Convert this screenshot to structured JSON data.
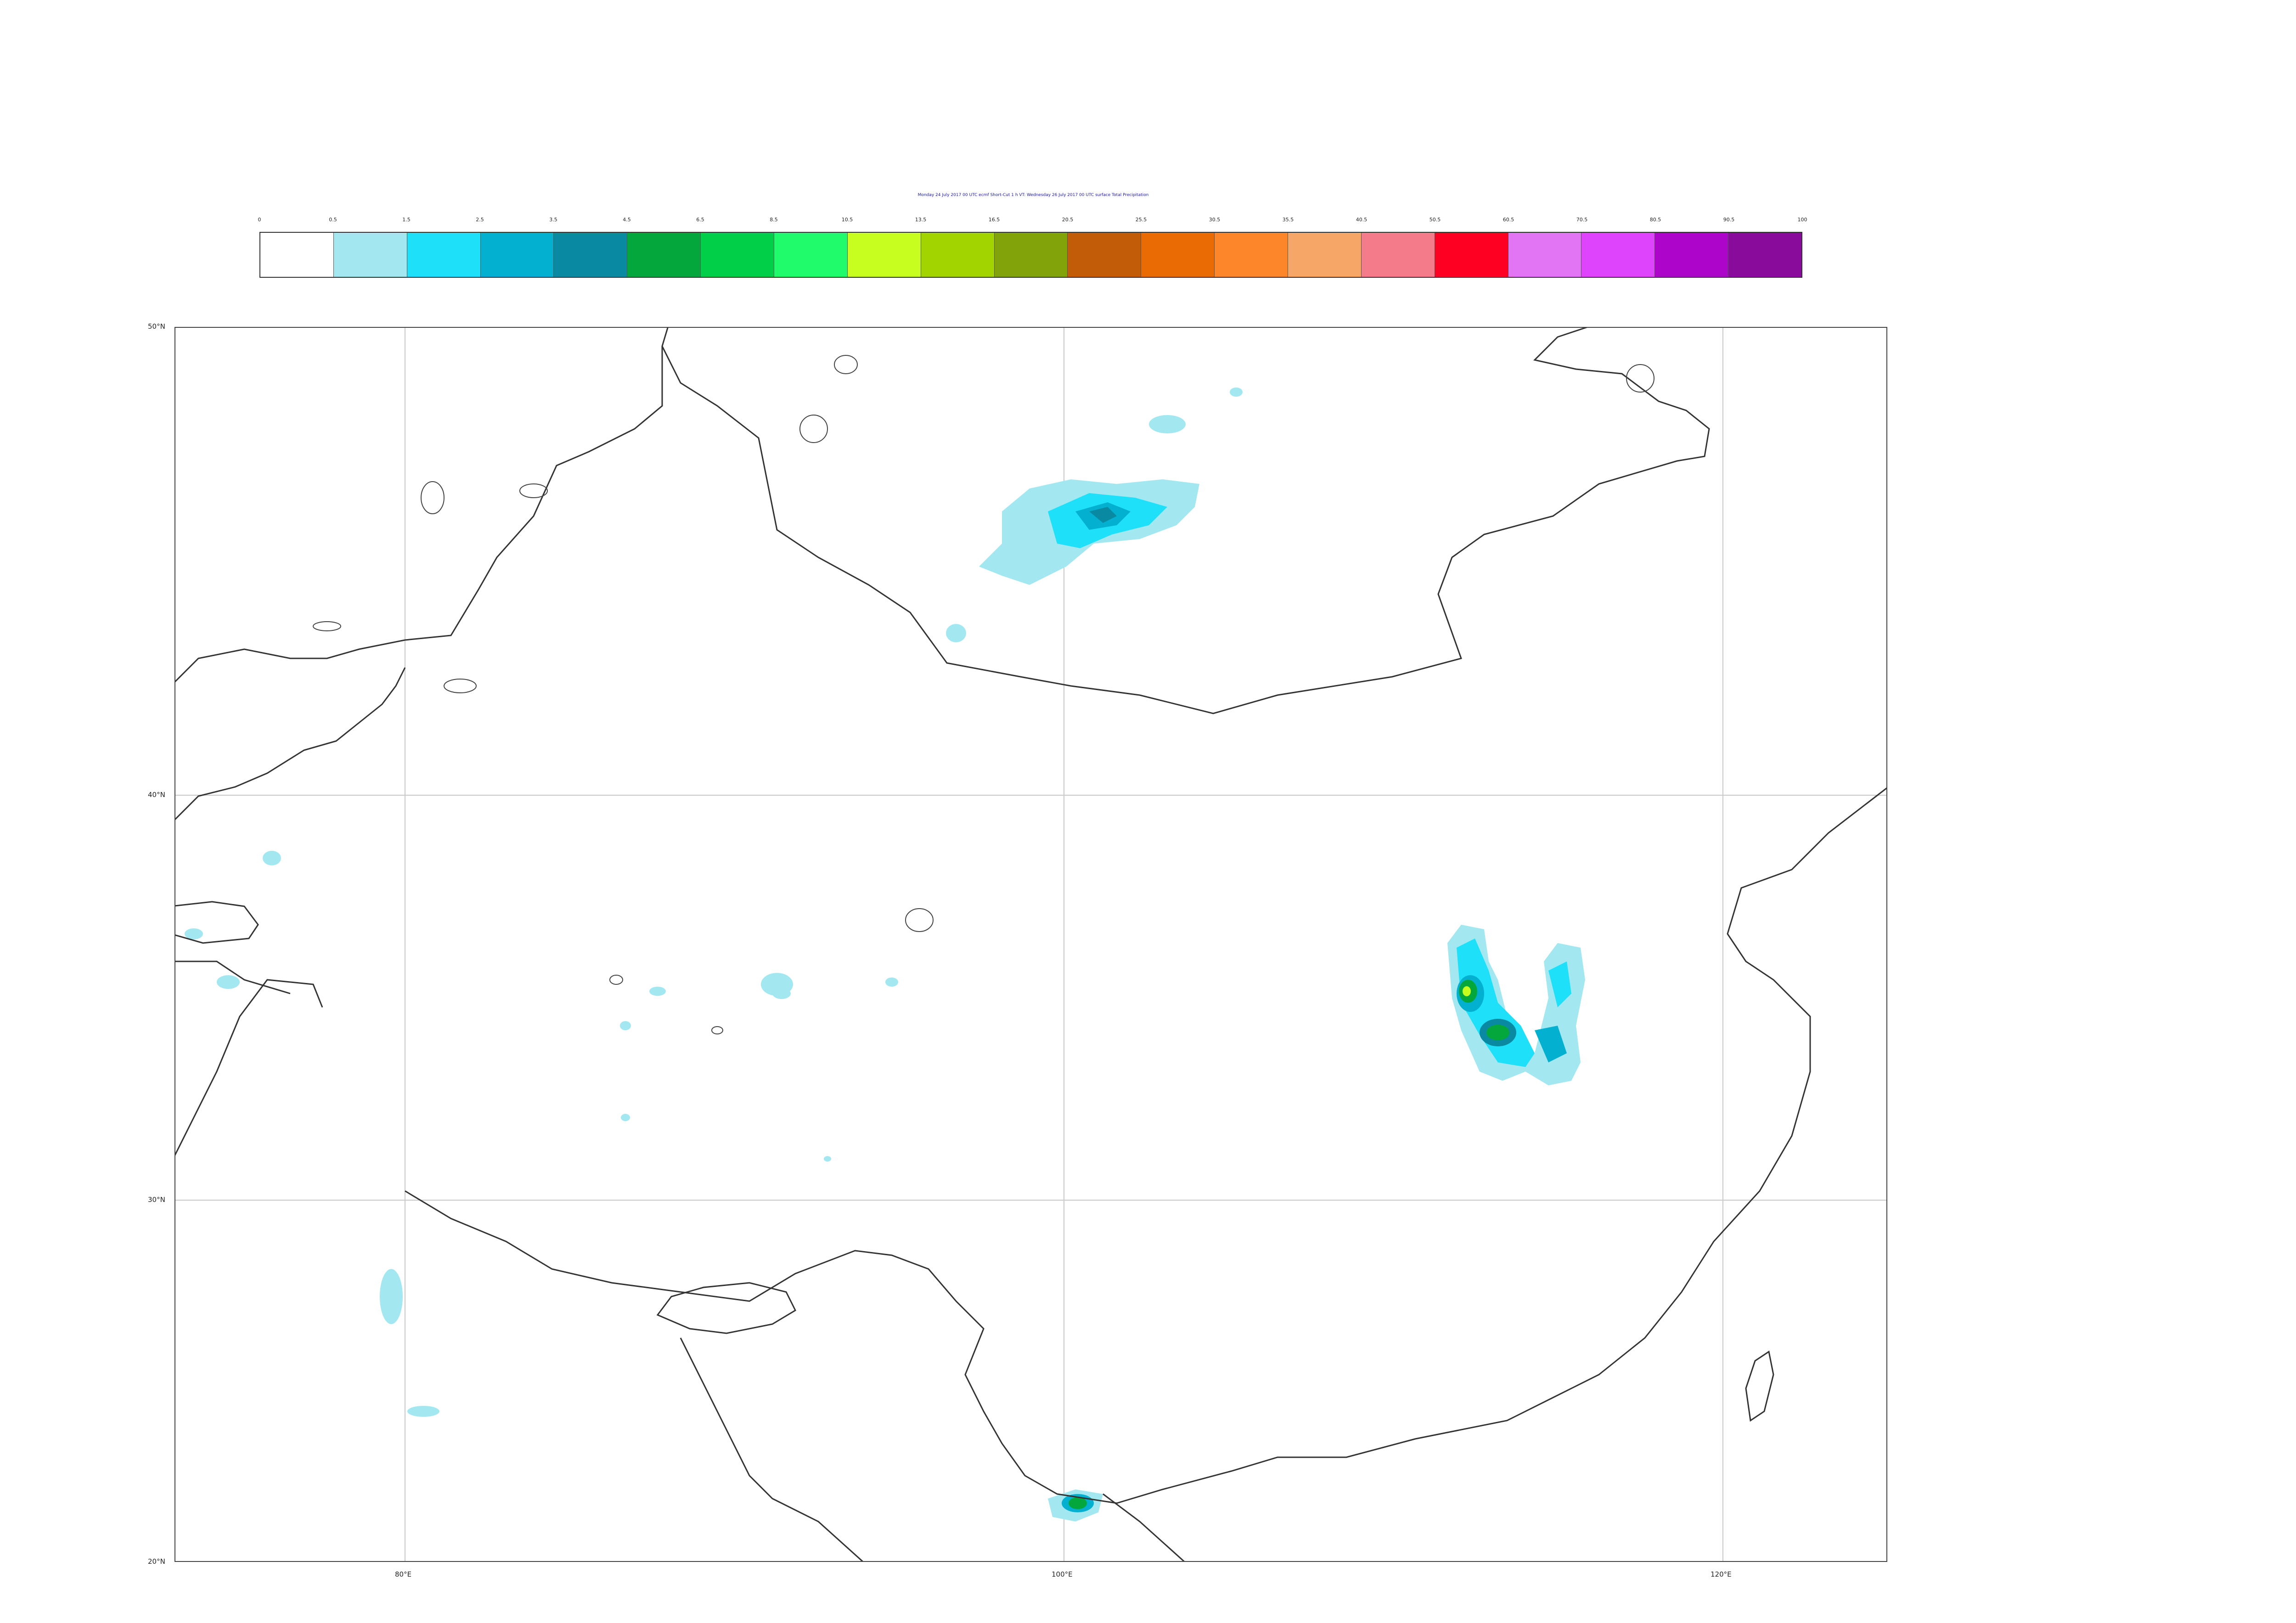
{
  "title": "Monday 24 July 2017 00 UTC ecmf Short-Cut 1 h VT: Wednesday 26 July 2017 00 UTC surface Total Precipitation",
  "colorbar": {
    "ticks": [
      "0",
      "0.5",
      "1.5",
      "2.5",
      "3.5",
      "4.5",
      "6.5",
      "8.5",
      "10.5",
      "13.5",
      "16.5",
      "20.5",
      "25.5",
      "30.5",
      "35.5",
      "40.5",
      "50.5",
      "60.5",
      "70.5",
      "80.5",
      "90.5",
      "100"
    ],
    "colors": [
      "#ffffff",
      "#a3e8f1",
      "#1ee0f8",
      "#04b0d0",
      "#0a8aa2",
      "#03a73c",
      "#00cf47",
      "#1ffb6a",
      "#c8fd20",
      "#a2d500",
      "#82a30a",
      "#c25c08",
      "#ea6a04",
      "#fd862a",
      "#f6a768",
      "#f37b8a",
      "#fe0022",
      "#e275f3",
      "#dd44fb",
      "#ad05c9",
      "#880b9c"
    ]
  },
  "map": {
    "lon_range": [
      73,
      125
    ],
    "lat_range": [
      20,
      50
    ],
    "lat_labels": [
      "50°N",
      "40°N",
      "30°N",
      "20°N"
    ],
    "lon_labels": [
      "80°E",
      "100°E",
      "120°E"
    ],
    "gridlines": true
  }
}
